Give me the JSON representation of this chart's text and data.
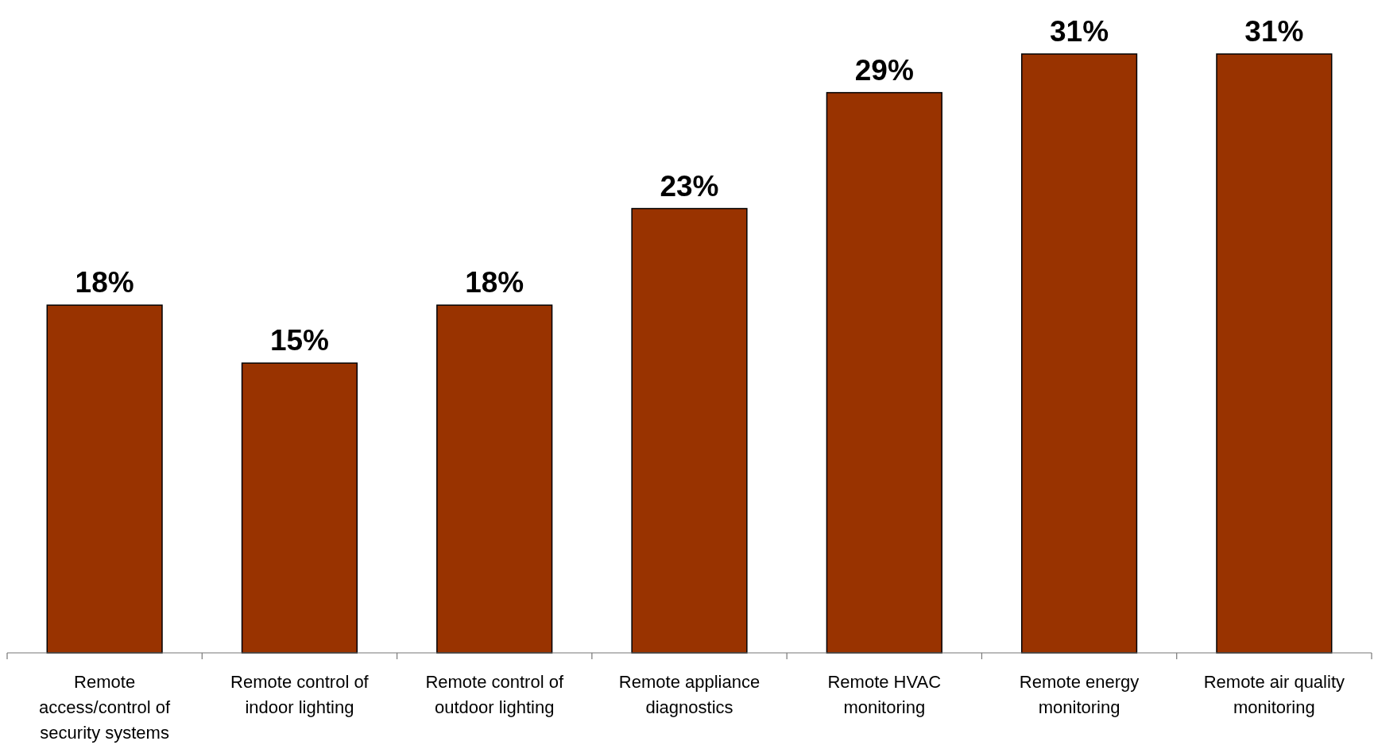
{
  "chart_data": {
    "type": "bar",
    "categories": [
      "Remote access/control of security systems",
      "Remote control of indoor lighting",
      "Remote control of outdoor lighting",
      "Remote appliance diagnostics",
      "Remote HVAC monitoring",
      "Remote energy monitoring",
      "Remote air quality monitoring"
    ],
    "values": [
      18,
      15,
      18,
      23,
      29,
      31,
      31
    ],
    "value_labels": [
      "18%",
      "15%",
      "18%",
      "23%",
      "29%",
      "31%",
      "31%"
    ],
    "color": "#993300"
  }
}
